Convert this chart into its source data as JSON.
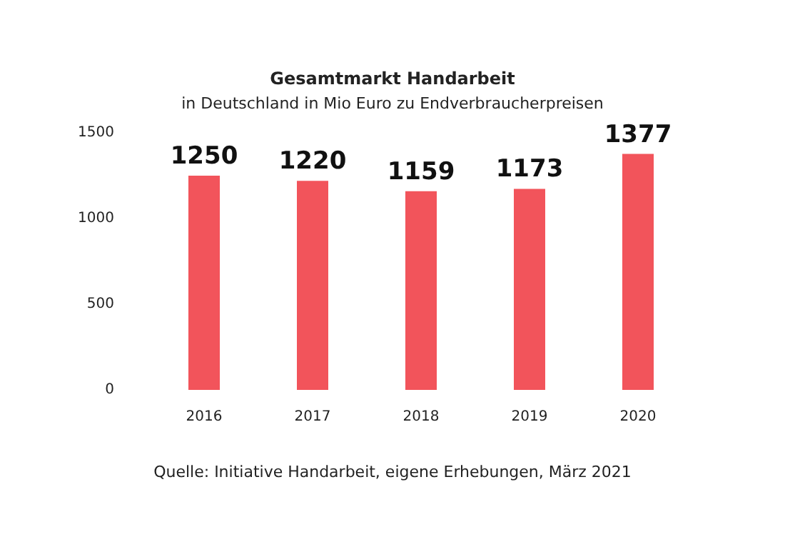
{
  "chart_data": {
    "type": "bar",
    "title": "Gesamtmarkt Handarbeit",
    "subtitle": "in Deutschland in Mio Euro zu Endverbraucherpreisen",
    "categories": [
      "2016",
      "2017",
      "2018",
      "2019",
      "2020"
    ],
    "values": [
      1250,
      1220,
      1159,
      1173,
      1377
    ],
    "color": "#f2545b",
    "ylim": [
      0,
      1500
    ],
    "yticks": [
      0,
      500,
      1000,
      1500
    ],
    "grid": false,
    "data_labels": true,
    "annotations": [
      "Quelle: Initiative Handarbeit, eigene Erhebungen, März 2021"
    ]
  }
}
